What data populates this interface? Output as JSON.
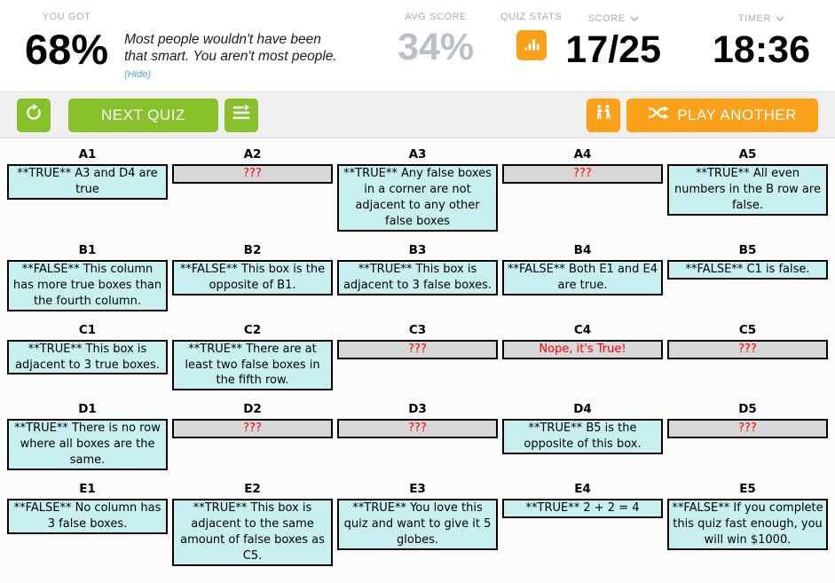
{
  "header": {
    "you_got_label": "YOU GOT",
    "you_got_value": "68%",
    "message": "Most people wouldn't have been that smart. You aren't most people.",
    "hide_link": "(Hide)",
    "avg_score_label": "AVG SCORE",
    "avg_score_value": "34%",
    "quiz_stats_label": "QUIZ STATS",
    "score_label": "SCORE",
    "score_value": "17/25",
    "timer_label": "TIMER",
    "timer_value": "18:36"
  },
  "toolbar": {
    "next_quiz_label": "NEXT QUIZ",
    "play_another_label": "PLAY ANOTHER"
  },
  "colors": {
    "green": "#86c02a",
    "orange": "#faa019",
    "correct_box": "#c9f0f1",
    "unanswered_box": "#d8d8d8",
    "wrong_text": "#ff0000"
  },
  "grid": {
    "rows": [
      [
        {
          "id": "A1",
          "text": "**TRUE** A3 and D4 are true",
          "state": "correct"
        },
        {
          "id": "A2",
          "text": "???",
          "state": "unanswered"
        },
        {
          "id": "A3",
          "text": "**TRUE** Any false boxes in a corner are not adjacent to any other false boxes",
          "state": "correct"
        },
        {
          "id": "A4",
          "text": "???",
          "state": "unanswered"
        },
        {
          "id": "A5",
          "text": "**TRUE** All even numbers in the B row are false.",
          "state": "correct"
        }
      ],
      [
        {
          "id": "B1",
          "text": "**FALSE** This column has more true boxes than the fourth column.",
          "state": "correct"
        },
        {
          "id": "B2",
          "text": "**FALSE** This box is the opposite of B1.",
          "state": "correct"
        },
        {
          "id": "B3",
          "text": "**TRUE** This box is adjacent to 3 false boxes.",
          "state": "correct"
        },
        {
          "id": "B4",
          "text": "**FALSE** Both E1 and E4 are true.",
          "state": "correct"
        },
        {
          "id": "B5",
          "text": "**FALSE** C1 is false.",
          "state": "correct"
        }
      ],
      [
        {
          "id": "C1",
          "text": "**TRUE** This box is adjacent to 3 true boxes.",
          "state": "correct"
        },
        {
          "id": "C2",
          "text": "**TRUE** There are at least two false boxes in the fifth row.",
          "state": "correct"
        },
        {
          "id": "C3",
          "text": "???",
          "state": "unanswered"
        },
        {
          "id": "C4",
          "text": "Nope, it's True!",
          "state": "wrong"
        },
        {
          "id": "C5",
          "text": "???",
          "state": "unanswered"
        }
      ],
      [
        {
          "id": "D1",
          "text": "**TRUE** There is no row where all boxes are the same.",
          "state": "correct"
        },
        {
          "id": "D2",
          "text": "???",
          "state": "unanswered"
        },
        {
          "id": "D3",
          "text": "???",
          "state": "unanswered"
        },
        {
          "id": "D4",
          "text": "**TRUE** B5 is the opposite of this box.",
          "state": "correct"
        },
        {
          "id": "D5",
          "text": "???",
          "state": "unanswered"
        }
      ],
      [
        {
          "id": "E1",
          "text": "**FALSE** No column has 3 false boxes.",
          "state": "correct"
        },
        {
          "id": "E2",
          "text": "**TRUE** This box is adjacent to the same amount of false boxes as C5.",
          "state": "correct"
        },
        {
          "id": "E3",
          "text": "**TRUE** You love this quiz and want to give it 5 globes.",
          "state": "correct"
        },
        {
          "id": "E4",
          "text": "**TRUE** 2 + 2 = 4",
          "state": "correct"
        },
        {
          "id": "E5",
          "text": "**FALSE** If you complete this quiz fast enough, you will win $1000.",
          "state": "correct"
        }
      ]
    ]
  }
}
